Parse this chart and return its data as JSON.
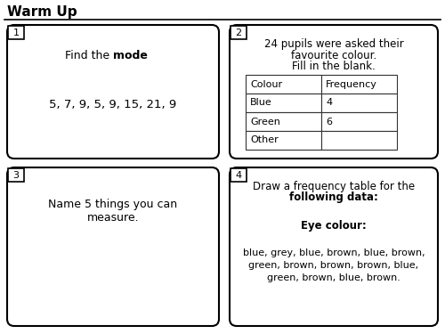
{
  "title": "Warm Up",
  "background_color": "#ffffff",
  "box1_number": "1",
  "box1_data": "5, 7, 9, 5, 9, 15, 21, 9",
  "box2_number": "2",
  "box2_text1": "24 pupils were asked their",
  "box2_text2": "favourite colour.",
  "box2_text3": "Fill in the blank.",
  "box2_table_headers": [
    "Colour",
    "Frequency"
  ],
  "box2_table_rows": [
    [
      "Blue",
      "4"
    ],
    [
      "Green",
      "6"
    ],
    [
      "Other",
      ""
    ]
  ],
  "box3_number": "3",
  "box3_text1": "Name 5 things you can",
  "box3_text2": "measure.",
  "box4_number": "4",
  "box4_text1": "Draw a frequency table for the",
  "box4_text2": "following data",
  "box4_text3": "Eye colour",
  "box4_text4": "blue, grey, blue, brown, blue, brown,",
  "box4_text5": "green, brown, brown, brown, blue,",
  "box4_text6": "green, brown, blue, brown."
}
